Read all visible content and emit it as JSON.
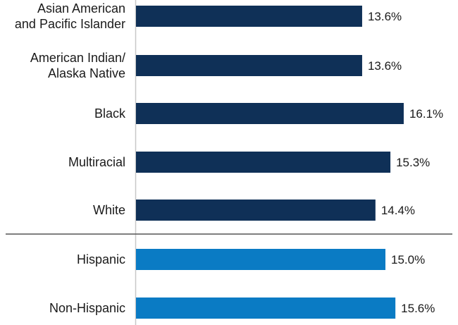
{
  "chart_data": {
    "type": "bar",
    "orientation": "horizontal",
    "categories": [
      "Asian American and Pacific Islander",
      "American Indian/ Alaska Native",
      "Black",
      "Multiracial",
      "White",
      "Hispanic",
      "Non-Hispanic"
    ],
    "category_lines": [
      [
        "Asian American",
        "and Pacific Islander"
      ],
      [
        "American Indian/",
        "Alaska Native"
      ],
      [
        "Black"
      ],
      [
        "Multiracial"
      ],
      [
        "White"
      ],
      [
        "Hispanic"
      ],
      [
        "Non-Hispanic"
      ]
    ],
    "values": [
      13.6,
      13.6,
      16.1,
      15.3,
      14.4,
      15.0,
      15.6
    ],
    "value_labels": [
      "13.6%",
      "13.6%",
      "16.1%",
      "15.3%",
      "14.4%",
      "15.0%",
      "15.6%"
    ],
    "groups": [
      {
        "color": "#0f3057",
        "members": [
          0,
          1,
          2,
          3,
          4
        ]
      },
      {
        "color": "#0a7bc4",
        "members": [
          5,
          6
        ]
      }
    ],
    "divider_after_index": 4,
    "xlim": [
      0,
      18
    ],
    "grid": false,
    "legend": "none",
    "title": "",
    "xlabel": "",
    "ylabel": ""
  }
}
